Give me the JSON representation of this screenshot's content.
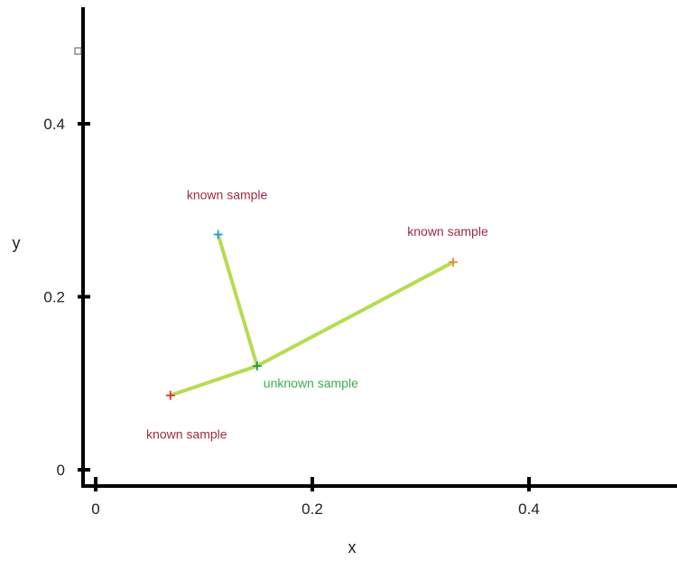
{
  "chart_data": {
    "type": "scatter",
    "xlabel": "x",
    "ylabel": "y",
    "x_ticks": [
      {
        "value": 0,
        "label": "0"
      },
      {
        "value": 0.2,
        "label": "0.2"
      },
      {
        "value": 0.4,
        "label": "0.4"
      }
    ],
    "y_ticks": [
      {
        "value": 0,
        "label": "0"
      },
      {
        "value": 0.2,
        "label": "0.2"
      },
      {
        "value": 0.4,
        "label": "0.4"
      }
    ],
    "xlim": [
      -0.011,
      0.475
    ],
    "ylim": [
      -0.02,
      0.5
    ],
    "grid": false,
    "points": [
      {
        "label": "known sample",
        "x": 0.069,
        "y": 0.086,
        "color": "#e0303a",
        "label_color": "#9e2a45",
        "label_pos": "below-left"
      },
      {
        "label": "known sample",
        "x": 0.113,
        "y": 0.272,
        "color": "#2d9ae8",
        "label_color": "#9e2a45",
        "label_pos": "above"
      },
      {
        "label": "known sample",
        "x": 0.33,
        "y": 0.24,
        "color": "#f08a3c",
        "label_color": "#9e2a45",
        "label_pos": "above-left"
      },
      {
        "label": "unknown sample",
        "x": 0.149,
        "y": 0.12,
        "color": "#1e9a55",
        "label_color": "#3cae50",
        "label_pos": "below-right"
      }
    ],
    "lines_from": "unknown sample",
    "line_color": "#b5dc52"
  }
}
